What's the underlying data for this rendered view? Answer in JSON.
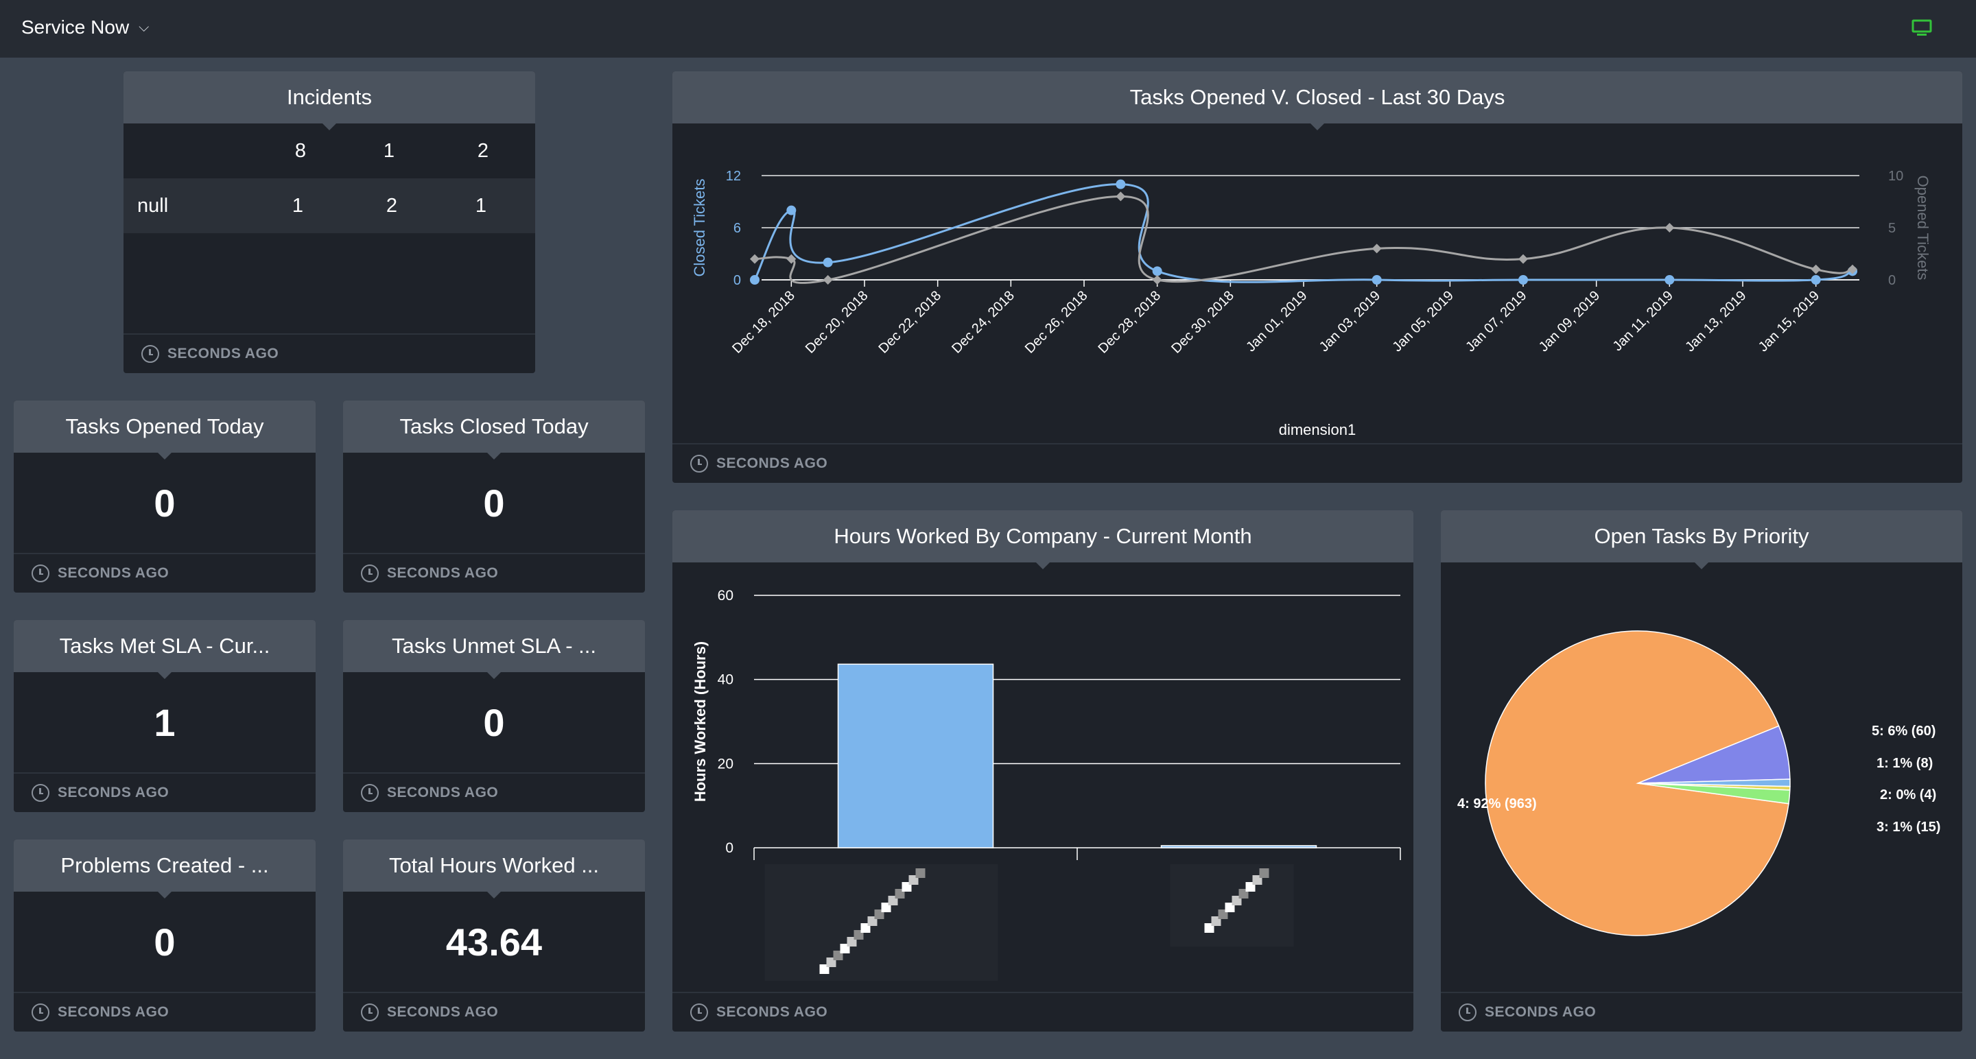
{
  "topbar": {
    "app_title": "Service Now",
    "display_icon": "monitor-icon",
    "display_icon_color": "#33c23a"
  },
  "common": {
    "footer_text": "SECONDS AGO"
  },
  "incidents": {
    "title": "Incidents",
    "header": [
      "",
      "8",
      "1",
      "2"
    ],
    "rows": [
      {
        "label": "null",
        "values": [
          "1",
          "2",
          "1"
        ]
      }
    ]
  },
  "kpis": {
    "tasks_opened_today": {
      "title": "Tasks Opened Today",
      "value": "0"
    },
    "tasks_closed_today": {
      "title": "Tasks Closed Today",
      "value": "0"
    },
    "tasks_met_sla": {
      "title": "Tasks Met SLA - Cur...",
      "value": "1"
    },
    "tasks_unmet_sla": {
      "title": "Tasks Unmet SLA - ...",
      "value": "0"
    },
    "problems_created": {
      "title": "Problems Created - ...",
      "value": "0"
    },
    "total_hours_worked": {
      "title": "Total Hours Worked ...",
      "value": "43.64"
    }
  },
  "chart_data": [
    {
      "id": "tasks_line",
      "type": "line",
      "title": "Tasks Opened V. Closed - Last 30 Days",
      "xlabel": "dimension1",
      "ylabel_left": "Closed Tickets",
      "ylabel_right": "Opened Tickets",
      "ylim_left": [
        0,
        12
      ],
      "ylim_right": [
        0,
        10
      ],
      "yticks_left": [
        "0",
        "6",
        "12"
      ],
      "yticks_right": [
        "0",
        "5",
        "10"
      ],
      "x_tick_labels": [
        "Dec 18, 2018",
        "Dec 20, 2018",
        "Dec 22, 2018",
        "Dec 24, 2018",
        "Dec 26, 2018",
        "Dec 28, 2018",
        "Dec 30, 2018",
        "Jan 01, 2019",
        "Jan 03, 2019",
        "Jan 05, 2019",
        "Jan 07, 2019",
        "Jan 09, 2019",
        "Jan 11, 2019",
        "Jan 13, 2019",
        "Jan 15, 2019"
      ],
      "x": [
        "2018-12-17",
        "2018-12-18",
        "2018-12-19",
        "2018-12-27",
        "2018-12-28",
        "2019-01-03",
        "2019-01-07",
        "2019-01-11",
        "2019-01-15",
        "2019-01-16"
      ],
      "series": [
        {
          "name": "Closed",
          "axis": "left",
          "color": "#7cb5ec",
          "marker": "circle",
          "values": [
            0,
            8,
            2,
            11,
            1,
            0,
            0,
            0,
            0,
            1
          ]
        },
        {
          "name": "Opened",
          "axis": "right",
          "color": "#a6a6a6",
          "marker": "diamond",
          "values": [
            2,
            2,
            0,
            8,
            0,
            3,
            2,
            5,
            1,
            1
          ]
        }
      ],
      "legend": "bottom-center",
      "grid": true
    },
    {
      "id": "hours_bar",
      "type": "bar",
      "title": "Hours Worked By Company - Current Month",
      "ylabel": "Hours Worked (Hours)",
      "ylim": [
        0,
        60
      ],
      "yticks": [
        "0",
        "20",
        "40",
        "60"
      ],
      "categories": [
        "",
        ""
      ],
      "values": [
        43.64,
        0.5
      ],
      "color": "#7cb5ec",
      "grid": true
    },
    {
      "id": "priority_pie",
      "type": "pie",
      "title": "Open Tasks By Priority",
      "slices": [
        {
          "label": "4: 92% (963)",
          "value": 963,
          "color": "#f7a35c"
        },
        {
          "label": "5: 6% (60)",
          "value": 60,
          "color": "#8085e9"
        },
        {
          "label": "1: 1% (8)",
          "value": 8,
          "color": "#7cb5ec"
        },
        {
          "label": "2: 0% (4)",
          "value": 4,
          "color": "#e4d354"
        },
        {
          "label": "3: 1% (15)",
          "value": 15,
          "color": "#90ed7d"
        }
      ]
    }
  ]
}
